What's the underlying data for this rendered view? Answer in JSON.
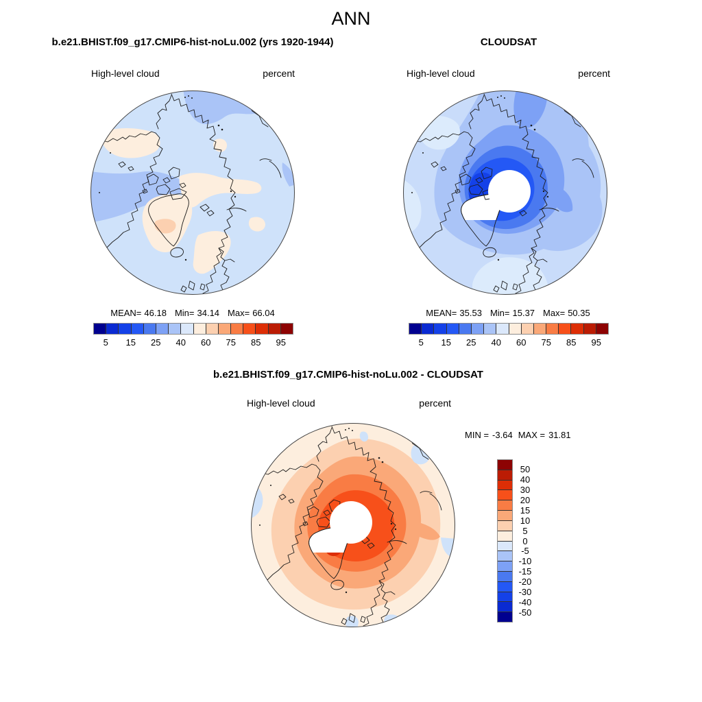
{
  "page": {
    "title": "ANN"
  },
  "shared": {
    "field_label": "High-level cloud",
    "units_label": "percent"
  },
  "panel_model": {
    "title": "b.e21.BHIST.f09_g17.CMIP6-hist-noLu.002 (yrs 1920-1944)",
    "stats": {
      "mean_label": "MEAN=",
      "mean_value": "46.18",
      "min_label": "Min=",
      "min_value": "34.14",
      "max_label": "Max=",
      "max_value": "66.04"
    }
  },
  "panel_obs": {
    "title": "CLOUDSAT",
    "stats": {
      "mean_label": "MEAN=",
      "mean_value": "35.53",
      "min_label": "Min=",
      "min_value": "15.37",
      "max_label": "Max=",
      "max_value": "50.35"
    }
  },
  "panel_diff": {
    "title": "b.e21.BHIST.f09_g17.CMIP6-hist-noLu.002 - CLOUDSAT",
    "stats": {
      "min_label": "MIN =",
      "min_value": "-3.64",
      "max_label": "MAX =",
      "max_value": "31.81"
    }
  },
  "colorbar_h": {
    "tick_labels": [
      "5",
      "15",
      "25",
      "40",
      "60",
      "75",
      "85",
      "95"
    ],
    "labeled_boundary_indices": [
      1,
      3,
      5,
      7,
      9,
      11,
      13,
      15
    ],
    "levels": [
      5,
      10,
      15,
      20,
      25,
      30,
      40,
      50,
      60,
      70,
      75,
      80,
      85,
      90,
      95
    ]
  },
  "colorbar_v": {
    "labels": [
      "50",
      "40",
      "30",
      "20",
      "15",
      "10",
      "5",
      "0",
      "-5",
      "-10",
      "-15",
      "-20",
      "-30",
      "-40",
      "-50"
    ],
    "levels": [
      -50,
      -40,
      -30,
      -20,
      -15,
      -10,
      -5,
      0,
      5,
      10,
      15,
      20,
      30,
      40,
      50
    ]
  },
  "palette_blue_to_red": [
    "#00008f",
    "#0a2ad2",
    "#1441e8",
    "#2458f5",
    "#4a79f0",
    "#7da1f5",
    "#aac4f7",
    "#dbe8fb",
    "#fdeede",
    "#fcd0b0",
    "#faa878",
    "#f97c44",
    "#f7501a",
    "#dd2e06",
    "#bb1c04",
    "#8d0303"
  ],
  "chart_data": [
    {
      "type": "heatmap",
      "subtype": "north-polar-stereographic-contour-map",
      "panel": "top-left",
      "title": "b.e21.BHIST.f09_g17.CMIP6-hist-noLu.002 (yrs 1920-1944)",
      "variable": "High-level cloud",
      "units": "percent",
      "stats": {
        "mean": 46.18,
        "min": 34.14,
        "max": 66.04
      },
      "contour_levels": [
        5,
        10,
        15,
        20,
        25,
        30,
        40,
        50,
        60,
        70,
        75,
        80,
        85,
        90,
        95
      ],
      "colorbar_tick_labels": [
        "5",
        "15",
        "25",
        "40",
        "60",
        "75",
        "85",
        "95"
      ],
      "palette": "16-class blue-to-red diverging",
      "legend_position": "below",
      "notes": "Arctic mostly 40-50% (pale blue) with 30-40% patches (medium blue) over Canadian archipelago and top band, 50-60% (cream) over Alaska, Siberia band, Greenland and Scandinavia, 60-70% (peach) spot over Greenland"
    },
    {
      "type": "heatmap",
      "subtype": "north-polar-stereographic-contour-map",
      "panel": "top-right",
      "title": "CLOUDSAT",
      "variable": "High-level cloud",
      "units": "percent",
      "stats": {
        "mean": 35.53,
        "min": 15.37,
        "max": 50.35
      },
      "contour_levels": [
        5,
        10,
        15,
        20,
        25,
        30,
        40,
        50,
        60,
        70,
        75,
        80,
        85,
        90,
        95
      ],
      "colorbar_tick_labels": [
        "5",
        "15",
        "25",
        "40",
        "60",
        "75",
        "85",
        "95"
      ],
      "palette": "16-class blue-to-red diverging",
      "legend_position": "below",
      "notes": "Concentric blues deepening toward pole (down to 15-20%), white data-void circle over the pole and northern Greenland"
    },
    {
      "type": "heatmap",
      "subtype": "north-polar-stereographic-contour-map",
      "panel": "bottom-center",
      "title": "b.e21.BHIST.f09_g17.CMIP6-hist-noLu.002 - CLOUDSAT",
      "variable": "High-level cloud",
      "units": "percent",
      "stats": {
        "min": -3.64,
        "max": 31.81
      },
      "contour_levels": [
        -50,
        -40,
        -30,
        -20,
        -15,
        -10,
        -5,
        0,
        5,
        10,
        15,
        20,
        30,
        40,
        50
      ],
      "palette": "16-class blue-to-red diverging (red positive)",
      "legend_position": "right-vertical",
      "notes": "Positive (orange/red) difference almost everywhere, strongest (+20 to +30) around pole hole, small negative (pale blue) patches at map edges, white data-void circle at pole"
    }
  ]
}
